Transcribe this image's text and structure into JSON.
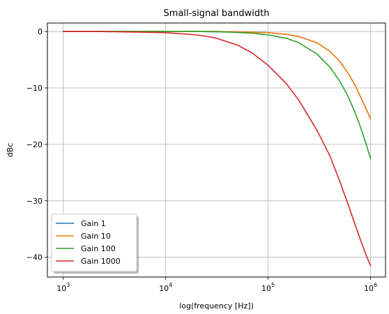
{
  "chart_data": {
    "type": "line",
    "title": "Small-signal bandwidth",
    "xlabel": "log(frequency [Hz])",
    "ylabel": "dBc",
    "xscale": "log",
    "xlim": [
      700,
      1400000
    ],
    "ylim": [
      -43.5,
      1.5
    ],
    "xticks": [
      {
        "value": 1000,
        "base": "10",
        "exp": "3"
      },
      {
        "value": 10000,
        "base": "10",
        "exp": "4"
      },
      {
        "value": 100000,
        "base": "10",
        "exp": "5"
      },
      {
        "value": 1000000,
        "base": "10",
        "exp": "6"
      }
    ],
    "yticks": [
      {
        "value": 0,
        "label": "0"
      },
      {
        "value": -10,
        "label": "−10"
      },
      {
        "value": -20,
        "label": "−20"
      },
      {
        "value": -30,
        "label": "−30"
      },
      {
        "value": -40,
        "label": "−40"
      }
    ],
    "grid": true,
    "legend_position": "lower-left",
    "series": [
      {
        "name": "Gain 1",
        "color": "#1f77b4",
        "x": [
          1000,
          10000,
          30000,
          60000,
          100000,
          150000,
          200000,
          300000,
          400000,
          500000,
          600000,
          700000,
          800000,
          900000,
          1000000
        ],
        "y": [
          0,
          0,
          0,
          -0.1,
          -0.2,
          -0.5,
          -0.9,
          -2.0,
          -3.5,
          -5.3,
          -7.3,
          -9.4,
          -11.6,
          -13.6,
          -15.5
        ]
      },
      {
        "name": "Gain 10",
        "color": "#ff7f0e",
        "x": [
          1000,
          10000,
          30000,
          60000,
          100000,
          150000,
          200000,
          300000,
          400000,
          500000,
          600000,
          700000,
          800000,
          900000,
          1000000
        ],
        "y": [
          0,
          0,
          0,
          -0.1,
          -0.2,
          -0.5,
          -0.9,
          -2.0,
          -3.5,
          -5.3,
          -7.3,
          -9.4,
          -11.6,
          -13.6,
          -15.5
        ]
      },
      {
        "name": "Gain 100",
        "color": "#2ca02c",
        "x": [
          1000,
          10000,
          20000,
          40000,
          70000,
          100000,
          150000,
          200000,
          300000,
          400000,
          500000,
          600000,
          700000,
          800000,
          900000,
          1000000
        ],
        "y": [
          0,
          0,
          0,
          -0.1,
          -0.3,
          -0.6,
          -1.2,
          -2.0,
          -4.0,
          -6.3,
          -8.8,
          -11.4,
          -14.2,
          -17.0,
          -19.8,
          -22.5
        ]
      },
      {
        "name": "Gain 1000",
        "color": "#d62728",
        "x": [
          1000,
          2000,
          5000,
          10000,
          20000,
          30000,
          50000,
          70000,
          100000,
          150000,
          200000,
          300000,
          400000,
          500000,
          600000,
          700000,
          800000,
          900000,
          1000000
        ],
        "y": [
          0,
          0,
          -0.1,
          -0.2,
          -0.6,
          -1.1,
          -2.4,
          -3.8,
          -6.0,
          -9.2,
          -12.2,
          -17.5,
          -22.0,
          -26.5,
          -30.5,
          -34.0,
          -37.0,
          -39.5,
          -41.5
        ]
      }
    ]
  }
}
